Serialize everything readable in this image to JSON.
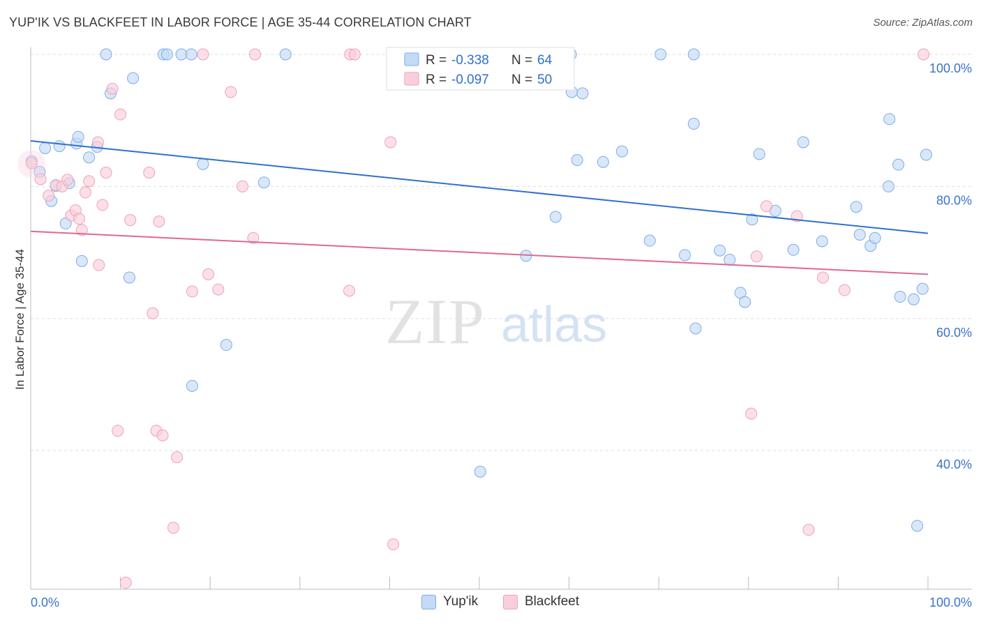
{
  "title": "YUP'IK VS BLACKFEET IN LABOR FORCE | AGE 35-44 CORRELATION CHART",
  "source": "Source: ZipAtlas.com",
  "watermark": {
    "zip": "ZIP",
    "atlas": "atlas"
  },
  "chart_data": {
    "type": "scatter",
    "title": "YUP'IK VS BLACKFEET IN LABOR FORCE | AGE 35-44 CORRELATION CHART",
    "xlabel": "",
    "ylabel": "In Labor Force | Age 35-44",
    "xlim": [
      0,
      100
    ],
    "ylim": [
      19,
      100
    ],
    "x_tick_labels": [
      "0.0%",
      "100.0%"
    ],
    "y_ticks": [
      40,
      60,
      80,
      100
    ],
    "y_tick_labels": [
      "40.0%",
      "60.0%",
      "80.0%",
      "100.0%"
    ],
    "grid": true,
    "series": [
      {
        "name": "Yup'ik",
        "color": "#7aaee8",
        "fill": "#c4daf6",
        "line_color": "#2f6fd0",
        "R": "-0.338",
        "N": "64",
        "trend": {
          "x": [
            0,
            100
          ],
          "y": [
            86.9,
            72.9
          ]
        },
        "points": [
          [
            0.1,
            83.8
          ],
          [
            1.0,
            82.2
          ],
          [
            1.6,
            85.8
          ],
          [
            2.3,
            77.8
          ],
          [
            2.8,
            80.1
          ],
          [
            3.2,
            86.1
          ],
          [
            3.9,
            74.4
          ],
          [
            4.3,
            80.5
          ],
          [
            5.1,
            86.5
          ],
          [
            5.3,
            87.5
          ],
          [
            5.7,
            68.7
          ],
          [
            6.5,
            84.4
          ],
          [
            7.4,
            86.0
          ],
          [
            8.4,
            100
          ],
          [
            8.9,
            94.1
          ],
          [
            11.0,
            66.2
          ],
          [
            11.4,
            96.4
          ],
          [
            14.8,
            100
          ],
          [
            15.2,
            100
          ],
          [
            16.8,
            100
          ],
          [
            17.9,
            100
          ],
          [
            18.0,
            49.8
          ],
          [
            19.2,
            83.4
          ],
          [
            26.0,
            80.6
          ],
          [
            28.4,
            100
          ],
          [
            41.2,
            100
          ],
          [
            50.1,
            36.8
          ],
          [
            55.2,
            69.5
          ],
          [
            58.5,
            75.4
          ],
          [
            60.2,
            100
          ],
          [
            60.3,
            94.3
          ],
          [
            60.9,
            84.0
          ],
          [
            61.5,
            94.1
          ],
          [
            63.8,
            83.7
          ],
          [
            65.9,
            85.3
          ],
          [
            69.0,
            71.8
          ],
          [
            70.2,
            100
          ],
          [
            72.9,
            69.6
          ],
          [
            73.9,
            89.5
          ],
          [
            74.1,
            58.5
          ],
          [
            73.9,
            100
          ],
          [
            76.8,
            70.3
          ],
          [
            77.9,
            68.9
          ],
          [
            79.1,
            63.9
          ],
          [
            79.6,
            62.5
          ],
          [
            80.4,
            75.0
          ],
          [
            81.2,
            84.9
          ],
          [
            83.0,
            76.3
          ],
          [
            85.0,
            70.4
          ],
          [
            86.1,
            86.7
          ],
          [
            88.2,
            71.7
          ],
          [
            92.0,
            76.9
          ],
          [
            92.4,
            72.7
          ],
          [
            93.6,
            71.0
          ],
          [
            94.1,
            72.2
          ],
          [
            95.7,
            90.2
          ],
          [
            95.6,
            80.0
          ],
          [
            96.7,
            83.3
          ],
          [
            96.9,
            63.3
          ],
          [
            98.4,
            62.9
          ],
          [
            98.8,
            28.6
          ],
          [
            99.4,
            64.5
          ],
          [
            99.8,
            84.8
          ],
          [
            21.8,
            56.0
          ]
        ]
      },
      {
        "name": "Blackfeet",
        "color": "#f0a0b8",
        "fill": "#f9cfdc",
        "line_color": "#e06890",
        "R": "-0.097",
        "N": "50",
        "trend": {
          "x": [
            0,
            100
          ],
          "y": [
            73.2,
            66.7
          ]
        },
        "points": [
          [
            0.1,
            83.5
          ],
          [
            1.1,
            81.1
          ],
          [
            2.0,
            78.6
          ],
          [
            2.8,
            80.2
          ],
          [
            3.5,
            80.0
          ],
          [
            4.1,
            81.0
          ],
          [
            4.5,
            75.6
          ],
          [
            5.0,
            76.4
          ],
          [
            5.4,
            75.1
          ],
          [
            5.7,
            73.4
          ],
          [
            6.1,
            79.1
          ],
          [
            6.5,
            80.8
          ],
          [
            7.5,
            86.7
          ],
          [
            7.6,
            68.1
          ],
          [
            8.0,
            77.2
          ],
          [
            8.4,
            82.1
          ],
          [
            9.1,
            94.8
          ],
          [
            9.7,
            43.0
          ],
          [
            10.0,
            90.9
          ],
          [
            11.1,
            74.9
          ],
          [
            13.2,
            82.1
          ],
          [
            13.6,
            60.8
          ],
          [
            14.0,
            43.0
          ],
          [
            14.3,
            74.7
          ],
          [
            14.7,
            42.3
          ],
          [
            15.9,
            28.3
          ],
          [
            16.3,
            39.0
          ],
          [
            18.0,
            64.1
          ],
          [
            19.8,
            66.7
          ],
          [
            20.9,
            64.4
          ],
          [
            22.3,
            94.3
          ],
          [
            23.6,
            80.0
          ],
          [
            24.8,
            72.2
          ],
          [
            25.0,
            100
          ],
          [
            35.5,
            64.2
          ],
          [
            35.6,
            100
          ],
          [
            36.1,
            100
          ],
          [
            40.1,
            86.7
          ],
          [
            40.4,
            25.8
          ],
          [
            41.0,
            100
          ],
          [
            80.3,
            45.6
          ],
          [
            80.9,
            69.4
          ],
          [
            82.0,
            77.0
          ],
          [
            85.4,
            75.5
          ],
          [
            86.7,
            28.0
          ],
          [
            88.3,
            66.2
          ],
          [
            90.7,
            64.3
          ],
          [
            99.5,
            100
          ],
          [
            10.6,
            20.0
          ],
          [
            19.2,
            100
          ]
        ]
      }
    ]
  },
  "legend": {
    "row1": {
      "r_label": "R =",
      "r_value": "-0.338",
      "n_label": "N =",
      "n_value": "64"
    },
    "row2": {
      "r_label": "R =",
      "r_value": "-0.097",
      "n_label": "N =",
      "n_value": "50"
    },
    "bottom": [
      {
        "label": "Yup'ik"
      },
      {
        "label": "Blackfeet"
      }
    ]
  }
}
